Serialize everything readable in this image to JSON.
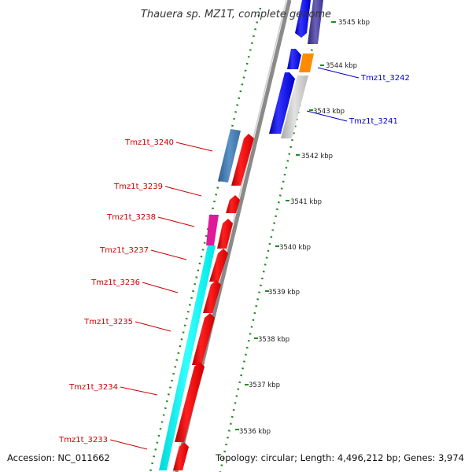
{
  "title": "Thauera sp. MZ1T, complete genome",
  "footer": {
    "accession": "Accession: NC_011662",
    "info": "Topology: circular; Length: 4,496,212 bp; Genes: 3,974"
  },
  "kbp_labels": [
    "3545 kbp",
    "3544 kbp",
    "3543 kbp",
    "3542 kbp",
    "3541 kbp",
    "3540 kbp",
    "3539 kbp",
    "3538 kbp",
    "3537 kbp",
    "3536 kbp"
  ],
  "genes_left": [
    "Tmz1t_3240",
    "Tmz1t_3239",
    "Tmz1t_3238",
    "Tmz1t_3237",
    "Tmz1t_3236",
    "Tmz1t_3235",
    "Tmz1t_3234",
    "Tmz1t_3233"
  ],
  "genes_right": [
    "Tmz1t_3242",
    "Tmz1t_3241"
  ],
  "colors": {
    "left_label": "#cc0000",
    "right_label": "#0000cc",
    "backbone": "#888888",
    "feature_red": "#ff0000",
    "feature_blue": "#0000ff",
    "feature_steelblue": "#4682b4",
    "feature_magenta": "#e0199a",
    "feature_cyan": "#00ffff",
    "feature_orange": "#ff8c00",
    "feature_gray": "#c8c8c8",
    "feature_slate": "#483d8b",
    "dotted_track": "#228b22"
  }
}
